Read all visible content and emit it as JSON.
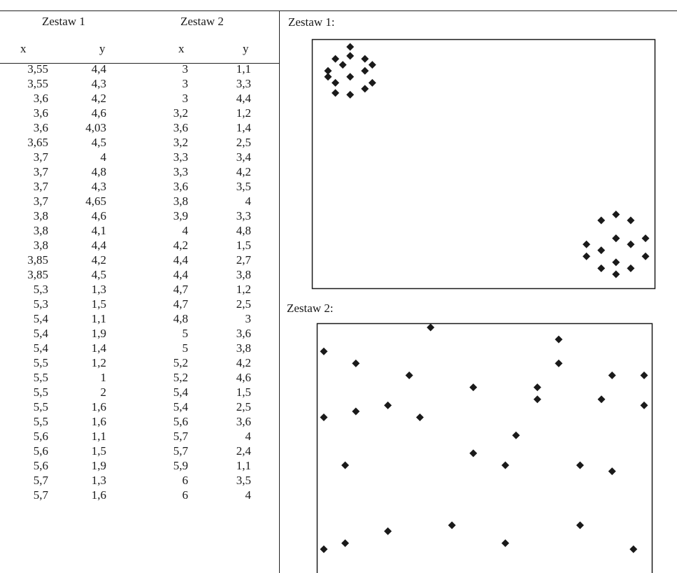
{
  "table": {
    "set1_label": "Zestaw 1",
    "set2_label": "Zestaw 2",
    "col_x": "x",
    "col_y": "y",
    "rows": [
      [
        "3,55",
        "4,4",
        "3",
        "1,1"
      ],
      [
        "3,55",
        "4,3",
        "3",
        "3,3"
      ],
      [
        "3,6",
        "4,2",
        "3",
        "4,4"
      ],
      [
        "3,6",
        "4,6",
        "3,2",
        "1,2"
      ],
      [
        "3,6",
        "4,03",
        "3,6",
        "1,4"
      ],
      [
        "3,65",
        "4,5",
        "3,2",
        "2,5"
      ],
      [
        "3,7",
        "4",
        "3,3",
        "3,4"
      ],
      [
        "3,7",
        "4,8",
        "3,3",
        "4,2"
      ],
      [
        "3,7",
        "4,3",
        "3,6",
        "3,5"
      ],
      [
        "3,7",
        "4,65",
        "3,8",
        "4"
      ],
      [
        "3,8",
        "4,6",
        "3,9",
        "3,3"
      ],
      [
        "3,8",
        "4,1",
        "4",
        "4,8"
      ],
      [
        "3,8",
        "4,4",
        "4,2",
        "1,5"
      ],
      [
        "3,85",
        "4,2",
        "4,4",
        "2,7"
      ],
      [
        "3,85",
        "4,5",
        "4,4",
        "3,8"
      ],
      [
        "5,3",
        "1,3",
        "4,7",
        "1,2"
      ],
      [
        "5,3",
        "1,5",
        "4,7",
        "2,5"
      ],
      [
        "5,4",
        "1,1",
        "4,8",
        "3"
      ],
      [
        "5,4",
        "1,9",
        "5",
        "3,6"
      ],
      [
        "5,4",
        "1,4",
        "5",
        "3,8"
      ],
      [
        "5,5",
        "1,2",
        "5,2",
        "4,2"
      ],
      [
        "5,5",
        "1",
        "5,2",
        "4,6"
      ],
      [
        "5,5",
        "2",
        "5,4",
        "1,5"
      ],
      [
        "5,5",
        "1,6",
        "5,4",
        "2,5"
      ],
      [
        "5,5",
        "1,6",
        "5,6",
        "3,6"
      ],
      [
        "5,6",
        "1,1",
        "5,7",
        "4"
      ],
      [
        "5,6",
        "1,5",
        "5,7",
        "2,4"
      ],
      [
        "5,6",
        "1,9",
        "5,9",
        "1,1"
      ],
      [
        "5,7",
        "1,3",
        "6",
        "3,5"
      ],
      [
        "5,7",
        "1,6",
        "6",
        "4"
      ]
    ]
  },
  "plots": {
    "set1_title": "Zestaw 1:",
    "set2_title": "Zestaw 2:"
  },
  "chart_data": [
    {
      "type": "scatter",
      "title": "Zestaw 1:",
      "xlim": [
        3.55,
        5.7
      ],
      "ylim": [
        1.0,
        4.8
      ],
      "marker_color": "#1a1a1a",
      "x": [
        3.55,
        3.55,
        3.6,
        3.6,
        3.6,
        3.65,
        3.7,
        3.7,
        3.7,
        3.7,
        3.8,
        3.8,
        3.8,
        3.85,
        3.85,
        5.3,
        5.3,
        5.4,
        5.4,
        5.4,
        5.5,
        5.5,
        5.5,
        5.5,
        5.5,
        5.6,
        5.6,
        5.6,
        5.7,
        5.7
      ],
      "y": [
        4.4,
        4.3,
        4.2,
        4.6,
        4.03,
        4.5,
        4,
        4.8,
        4.3,
        4.65,
        4.6,
        4.1,
        4.4,
        4.2,
        4.5,
        1.3,
        1.5,
        1.1,
        1.9,
        1.4,
        1.2,
        1,
        2,
        1.6,
        1.6,
        1.1,
        1.5,
        1.9,
        1.3,
        1.6
      ]
    },
    {
      "type": "scatter",
      "title": "Zestaw 2:",
      "xlim": [
        3,
        6
      ],
      "ylim": [
        1.1,
        4.8
      ],
      "marker_color": "#1a1a1a",
      "x": [
        3,
        3,
        3,
        3.2,
        3.6,
        3.2,
        3.3,
        3.3,
        3.6,
        3.8,
        3.9,
        4,
        4.2,
        4.4,
        4.4,
        4.7,
        4.7,
        4.8,
        5,
        5,
        5.2,
        5.2,
        5.4,
        5.4,
        5.6,
        5.7,
        5.7,
        5.9,
        6,
        6
      ],
      "y": [
        1.1,
        3.3,
        4.4,
        1.2,
        1.4,
        2.5,
        3.4,
        4.2,
        3.5,
        4,
        3.3,
        4.8,
        1.5,
        2.7,
        3.8,
        1.2,
        2.5,
        3,
        3.6,
        3.8,
        4.2,
        4.6,
        1.5,
        2.5,
        3.6,
        4,
        2.4,
        1.1,
        3.5,
        4
      ]
    }
  ]
}
